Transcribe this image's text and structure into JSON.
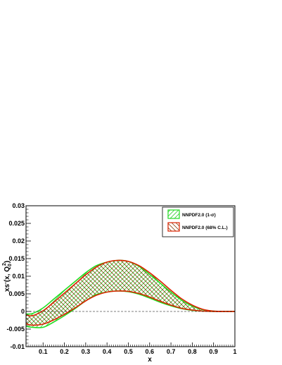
{
  "chart_data": {
    "type": "area",
    "xlabel": "x",
    "ylabel_main": "xs",
    "ylabel_sup": "-",
    "ylabel_paren": "(x, Q",
    "ylabel_q_sub": "0",
    "ylabel_q_sup": "2",
    "ylabel_close": ")",
    "xlim": [
      0.02,
      1.0
    ],
    "ylim": [
      -0.01,
      0.03
    ],
    "x_ticks": [
      0.1,
      0.2,
      0.3,
      0.4,
      0.5,
      0.6,
      0.7,
      0.8,
      0.9,
      1
    ],
    "x_tick_labels": [
      "0.1",
      "0.2",
      "0.3",
      "0.4",
      "0.5",
      "0.6",
      "0.7",
      "0.8",
      "0.9",
      "1"
    ],
    "y_ticks": [
      -0.01,
      -0.005,
      0,
      0.005,
      0.01,
      0.015,
      0.02,
      0.025,
      0.03
    ],
    "y_tick_labels": [
      "-0.01",
      "-0.005",
      "0",
      "0.005",
      "0.01",
      "0.015",
      "0.02",
      "0.025",
      "0.03"
    ],
    "grid": false,
    "legend_position": "top-right",
    "series": [
      {
        "name": "NNPDF2.0 (1-σ)",
        "color": "#22dd22",
        "x": [
          0.02,
          0.05,
          0.1,
          0.15,
          0.2,
          0.25,
          0.3,
          0.35,
          0.4,
          0.45,
          0.5,
          0.55,
          0.6,
          0.65,
          0.7,
          0.75,
          0.8,
          0.85,
          0.9,
          0.95,
          1.0
        ],
        "upper": [
          -0.0007,
          -0.0006,
          0.001,
          0.0035,
          0.006,
          0.0085,
          0.011,
          0.013,
          0.014,
          0.0145,
          0.0142,
          0.0128,
          0.0105,
          0.008,
          0.0055,
          0.0032,
          0.0015,
          0.0005,
          0.0001,
          0.0,
          0.0
        ],
        "lower": [
          -0.0042,
          -0.0045,
          -0.0045,
          -0.003,
          -0.0012,
          0.0008,
          0.003,
          0.0048,
          0.0055,
          0.0058,
          0.0056,
          0.0049,
          0.0038,
          0.0026,
          0.0016,
          0.0008,
          0.0003,
          0.0001,
          0.0,
          0.0,
          0.0
        ]
      },
      {
        "name": "NNPDF2.0 (68% C.L.)",
        "color": "#dd2200",
        "x": [
          0.02,
          0.05,
          0.1,
          0.15,
          0.2,
          0.25,
          0.3,
          0.35,
          0.4,
          0.45,
          0.5,
          0.55,
          0.6,
          0.65,
          0.7,
          0.75,
          0.8,
          0.85,
          0.9,
          0.95,
          1.0
        ],
        "upper": [
          -0.001,
          -0.0012,
          0.0002,
          0.0026,
          0.0052,
          0.0078,
          0.0104,
          0.0126,
          0.014,
          0.0145,
          0.0142,
          0.013,
          0.011,
          0.0086,
          0.006,
          0.0036,
          0.0018,
          0.0006,
          0.0001,
          0.0,
          0.0
        ],
        "lower": [
          -0.0035,
          -0.0039,
          -0.0036,
          -0.0024,
          -0.0008,
          0.001,
          0.003,
          0.0046,
          0.0055,
          0.0058,
          0.0057,
          0.0051,
          0.0041,
          0.0029,
          0.0018,
          0.0009,
          0.0004,
          0.0001,
          0.0,
          0.0,
          0.0
        ]
      }
    ]
  }
}
